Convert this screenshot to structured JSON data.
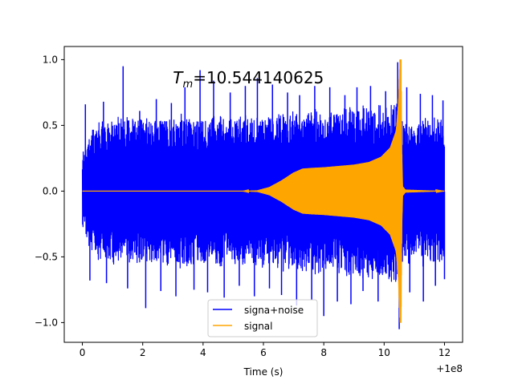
{
  "chart_data": {
    "type": "line",
    "title": "",
    "annotation": {
      "math_main": "T",
      "math_sub": "m",
      "rest": "=10.544140625",
      "position": [
        3.0,
        0.82
      ]
    },
    "xlabel": "Time (s)",
    "ylabel": "",
    "x_offset_label": "+1e8",
    "xlim": [
      -0.6,
      12.6
    ],
    "ylim": [
      -1.15,
      1.1
    ],
    "xticks": [
      0,
      2,
      4,
      6,
      8,
      10,
      12
    ],
    "xtick_labels": [
      "0",
      "2",
      "4",
      "6",
      "8",
      "10",
      "12"
    ],
    "yticks": [
      -1.0,
      -0.5,
      0.0,
      0.5,
      1.0
    ],
    "ytick_labels": [
      "−1.0",
      "−0.5",
      "0.0",
      "0.5",
      "1.0"
    ],
    "grid": false,
    "legend": {
      "placement": "lower-center",
      "entries": [
        "signa+noise",
        "signal"
      ]
    },
    "series": [
      {
        "name": "signa+noise",
        "color": "#0000ff",
        "style": "dense-noise",
        "x_range": [
          0,
          12
        ],
        "typical_envelope": [
          [
            0,
            0.3
          ],
          [
            0.5,
            0.52
          ],
          [
            1.0,
            0.55
          ],
          [
            2.0,
            0.54
          ],
          [
            3.0,
            0.56
          ],
          [
            4.0,
            0.55
          ],
          [
            5.0,
            0.55
          ],
          [
            6.0,
            0.56
          ],
          [
            7.0,
            0.6
          ],
          [
            8.0,
            0.62
          ],
          [
            9.0,
            0.63
          ],
          [
            10.0,
            0.65
          ],
          [
            10.5,
            0.72
          ],
          [
            10.6,
            0.56
          ],
          [
            11.0,
            0.55
          ],
          [
            12.0,
            0.55
          ]
        ],
        "upper_peaks": [
          [
            0.1,
            0.66
          ],
          [
            0.7,
            0.68
          ],
          [
            1.35,
            0.95
          ],
          [
            1.9,
            0.61
          ],
          [
            2.45,
            0.7
          ],
          [
            2.95,
            0.67
          ],
          [
            3.4,
            0.79
          ],
          [
            3.9,
            0.92
          ],
          [
            4.35,
            0.84
          ],
          [
            4.9,
            0.75
          ],
          [
            5.4,
            0.8
          ],
          [
            5.8,
            0.86
          ],
          [
            6.3,
            0.81
          ],
          [
            6.8,
            0.75
          ],
          [
            7.2,
            0.73
          ],
          [
            7.7,
            0.8
          ],
          [
            8.2,
            0.79
          ],
          [
            8.7,
            0.73
          ],
          [
            9.1,
            0.79
          ],
          [
            9.55,
            0.8
          ],
          [
            10.05,
            0.76
          ],
          [
            10.45,
            0.98
          ],
          [
            10.75,
            0.79
          ],
          [
            11.2,
            0.74
          ],
          [
            11.6,
            0.73
          ],
          [
            11.95,
            0.69
          ]
        ],
        "lower_peaks": [
          [
            0.25,
            -0.68
          ],
          [
            0.8,
            -0.7
          ],
          [
            1.5,
            -0.74
          ],
          [
            2.1,
            -0.89
          ],
          [
            2.6,
            -0.76
          ],
          [
            3.1,
            -0.8
          ],
          [
            3.7,
            -0.75
          ],
          [
            4.15,
            -0.77
          ],
          [
            4.7,
            -0.81
          ],
          [
            5.2,
            -0.72
          ],
          [
            5.7,
            -0.8
          ],
          [
            6.2,
            -0.74
          ],
          [
            6.6,
            -0.79
          ],
          [
            7.1,
            -0.87
          ],
          [
            7.6,
            -0.83
          ],
          [
            8.0,
            -0.95
          ],
          [
            8.45,
            -0.84
          ],
          [
            8.9,
            -0.86
          ],
          [
            9.3,
            -0.76
          ],
          [
            9.8,
            -0.84
          ],
          [
            10.5,
            -1.05
          ],
          [
            10.85,
            -0.77
          ],
          [
            11.3,
            -0.84
          ],
          [
            11.7,
            -0.72
          ],
          [
            12.0,
            -0.67
          ]
        ]
      },
      {
        "name": "signal",
        "color": "#ffa500",
        "style": "chirp",
        "x_range": [
          0,
          12
        ],
        "amplitude_envelope": [
          [
            0,
            0.0
          ],
          [
            5.3,
            0.0
          ],
          [
            5.8,
            0.005
          ],
          [
            6.2,
            0.03
          ],
          [
            6.6,
            0.08
          ],
          [
            7.0,
            0.14
          ],
          [
            7.3,
            0.17
          ],
          [
            7.6,
            0.175
          ],
          [
            8.0,
            0.18
          ],
          [
            8.5,
            0.19
          ],
          [
            9.0,
            0.2
          ],
          [
            9.5,
            0.22
          ],
          [
            9.9,
            0.26
          ],
          [
            10.2,
            0.33
          ],
          [
            10.4,
            0.46
          ],
          [
            10.48,
            0.7
          ],
          [
            10.52,
            1.0
          ],
          [
            10.56,
            1.0
          ],
          [
            10.6,
            0.04
          ],
          [
            10.7,
            0.01
          ],
          [
            12.0,
            0.0
          ]
        ]
      }
    ]
  }
}
